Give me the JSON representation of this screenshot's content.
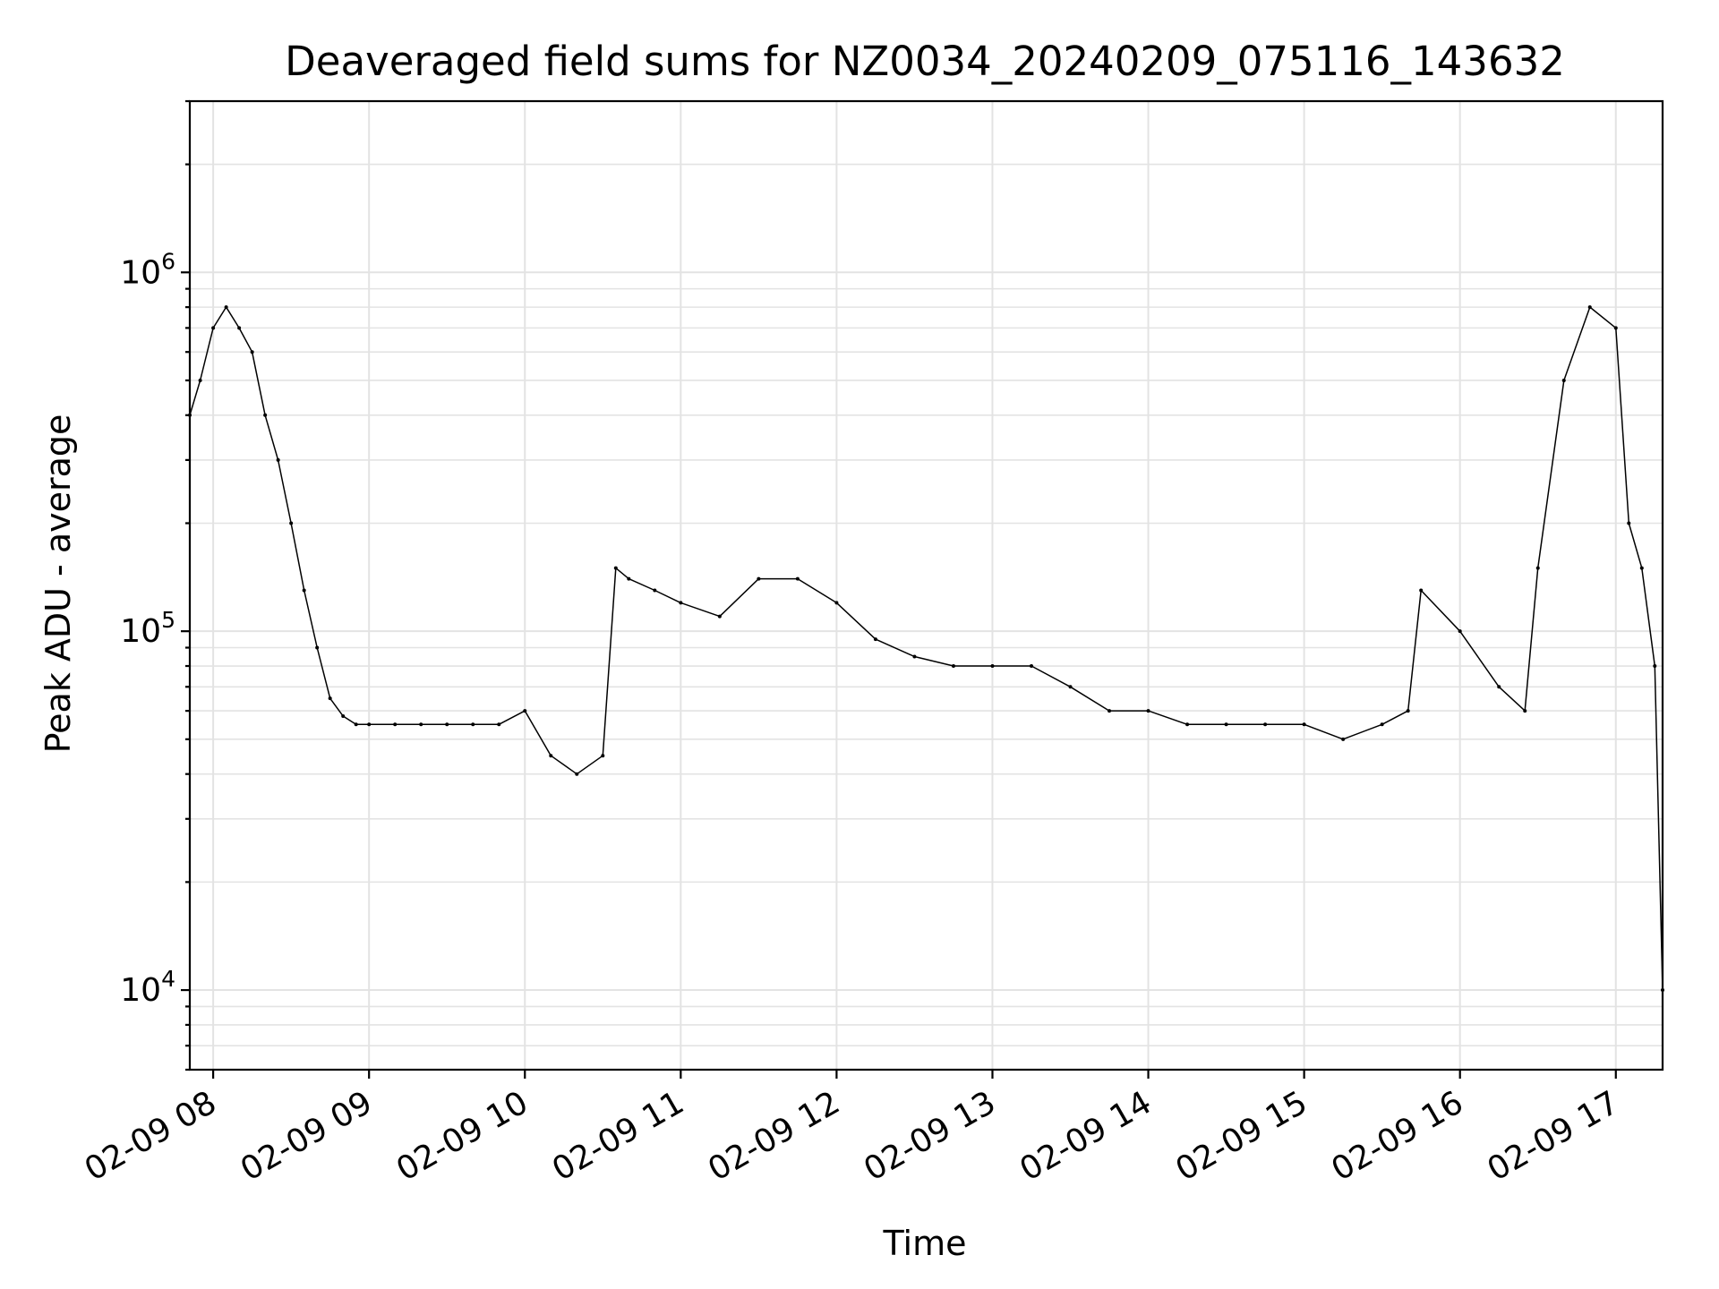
{
  "chart_data": {
    "type": "line",
    "title": "Deaveraged field sums for NZ0034_20240209_075116_143632",
    "xlabel": "Time",
    "ylabel": "Peak ADU - average",
    "yscale": "log",
    "ylim": [
      6000,
      3000000
    ],
    "xlim": [
      "02-09 07:51",
      "02-09 17:18"
    ],
    "x_ticks": [
      "02-09 08",
      "02-09 09",
      "02-09 10",
      "02-09 11",
      "02-09 12",
      "02-09 13",
      "02-09 14",
      "02-09 15",
      "02-09 16",
      "02-09 17"
    ],
    "y_ticks": [
      {
        "base": "10",
        "exp": "4",
        "value": 10000
      },
      {
        "base": "10",
        "exp": "5",
        "value": 100000
      },
      {
        "base": "10",
        "exp": "6",
        "value": 1000000
      }
    ],
    "grid": true,
    "legend": "none",
    "series_color": "#000000",
    "series": [
      {
        "x": [
          "02-09 07:51",
          "02-09 07:55",
          "02-09 08:00",
          "02-09 08:05",
          "02-09 08:10",
          "02-09 08:15",
          "02-09 08:20",
          "02-09 08:25",
          "02-09 08:30",
          "02-09 08:35",
          "02-09 08:40",
          "02-09 08:45",
          "02-09 08:50",
          "02-09 08:55",
          "02-09 09:00",
          "02-09 09:10",
          "02-09 09:20",
          "02-09 09:30",
          "02-09 09:40",
          "02-09 09:50",
          "02-09 10:00",
          "02-09 10:10",
          "02-09 10:20",
          "02-09 10:30",
          "02-09 10:35",
          "02-09 10:40",
          "02-09 10:50",
          "02-09 11:00",
          "02-09 11:15",
          "02-09 11:30",
          "02-09 11:45",
          "02-09 12:00",
          "02-09 12:15",
          "02-09 12:30",
          "02-09 12:45",
          "02-09 13:00",
          "02-09 13:15",
          "02-09 13:30",
          "02-09 13:45",
          "02-09 14:00",
          "02-09 14:15",
          "02-09 14:30",
          "02-09 14:45",
          "02-09 15:00",
          "02-09 15:15",
          "02-09 15:30",
          "02-09 15:40",
          "02-09 15:45",
          "02-09 16:00",
          "02-09 16:15",
          "02-09 16:25",
          "02-09 16:30",
          "02-09 16:40",
          "02-09 16:50",
          "02-09 17:00",
          "02-09 17:05",
          "02-09 17:10",
          "02-09 17:15",
          "02-09 17:18"
        ],
        "y": [
          400000,
          500000,
          700000,
          800000,
          700000,
          600000,
          400000,
          300000,
          200000,
          130000,
          90000,
          65000,
          58000,
          55000,
          55000,
          55000,
          55000,
          55000,
          55000,
          55000,
          60000,
          45000,
          40000,
          45000,
          150000,
          140000,
          130000,
          120000,
          110000,
          140000,
          140000,
          120000,
          95000,
          85000,
          80000,
          80000,
          80000,
          70000,
          60000,
          60000,
          55000,
          55000,
          55000,
          55000,
          50000,
          55000,
          60000,
          130000,
          100000,
          70000,
          60000,
          150000,
          500000,
          800000,
          700000,
          200000,
          150000,
          80000,
          10000
        ]
      }
    ]
  }
}
